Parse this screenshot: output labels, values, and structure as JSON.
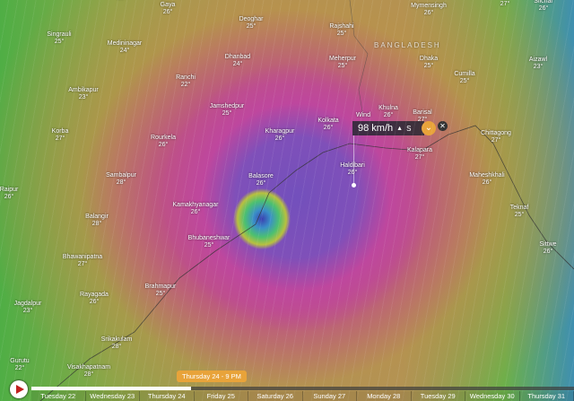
{
  "map": {
    "country": "BANGLADESH",
    "cities": [
      {
        "name": "Gaya",
        "temp": "26°"
      },
      {
        "name": "",
        "temp": "26°"
      },
      {
        "name": "Singrauli",
        "temp": "25°"
      },
      {
        "name": "Medininagar",
        "temp": "24°"
      },
      {
        "name": "Deoghar",
        "temp": "25°"
      },
      {
        "name": "Dhanbad",
        "temp": "24°"
      },
      {
        "name": "Ranchi",
        "temp": "22°"
      },
      {
        "name": "Ambikapur",
        "temp": "23°"
      },
      {
        "name": "Jamshedpur",
        "temp": "25°"
      },
      {
        "name": "Korba",
        "temp": "27°"
      },
      {
        "name": "Rourkela",
        "temp": "26°"
      },
      {
        "name": "Kharagpur",
        "temp": "26°"
      },
      {
        "name": "Sambalpur",
        "temp": "28°"
      },
      {
        "name": "Balasore",
        "temp": "26°"
      },
      {
        "name": "Raipur",
        "temp": "26°"
      },
      {
        "name": "Kamakhyanagar",
        "temp": "26°"
      },
      {
        "name": "Balangir",
        "temp": "28°"
      },
      {
        "name": "Bhubaneshwar",
        "temp": "25°"
      },
      {
        "name": "Bhawanipatna",
        "temp": "27°"
      },
      {
        "name": "Brahmapur",
        "temp": "25°"
      },
      {
        "name": "Rayagada",
        "temp": "26°"
      },
      {
        "name": "Jagdalpur",
        "temp": "23°"
      },
      {
        "name": "Srikakulam",
        "temp": "28°"
      },
      {
        "name": "Gurutu",
        "temp": "22°"
      },
      {
        "name": "Visakhapatnam",
        "temp": "28°"
      },
      {
        "name": "Rajshahi",
        "temp": "25°"
      },
      {
        "name": "Meherpur",
        "temp": "25°"
      },
      {
        "name": "Mymensingh",
        "temp": "26°"
      },
      {
        "name": "",
        "temp": "27°"
      },
      {
        "name": "Silchar",
        "temp": "26°"
      },
      {
        "name": "Dhaka",
        "temp": "25°"
      },
      {
        "name": "Cumilla",
        "temp": "25°"
      },
      {
        "name": "Aizawl",
        "temp": "23°"
      },
      {
        "name": "Khulna",
        "temp": "26°"
      },
      {
        "name": "Kolkata",
        "temp": "26°"
      },
      {
        "name": "Barisal",
        "temp": "27°"
      },
      {
        "name": "Chittagong",
        "temp": "27°"
      },
      {
        "name": "Kalapara",
        "temp": "27°"
      },
      {
        "name": "Haldibari",
        "temp": "26°"
      },
      {
        "name": "Maheshkhali",
        "temp": "26°"
      },
      {
        "name": "Teknaf",
        "temp": "25°"
      },
      {
        "name": "Sittwe",
        "temp": "26°"
      }
    ],
    "wind_label": "Wind"
  },
  "popup": {
    "speed": "98 km/h",
    "direction": "S",
    "expand_icon": "chevron-down-icon",
    "close_icon": "close-icon"
  },
  "timeline": {
    "play_icon": "play-icon",
    "current": "Thursday 24 - 9 PM",
    "progress_percent": 29.5,
    "days": [
      "Tuesday 22",
      "Wednesday 23",
      "Thursday 24",
      "Friday 25",
      "Saturday 26",
      "Sunday 27",
      "Monday 28",
      "Tuesday 29",
      "Wednesday 30",
      "Thursday 31"
    ]
  },
  "colors": {
    "accent": "#e8a33a",
    "play": "#c02020"
  }
}
